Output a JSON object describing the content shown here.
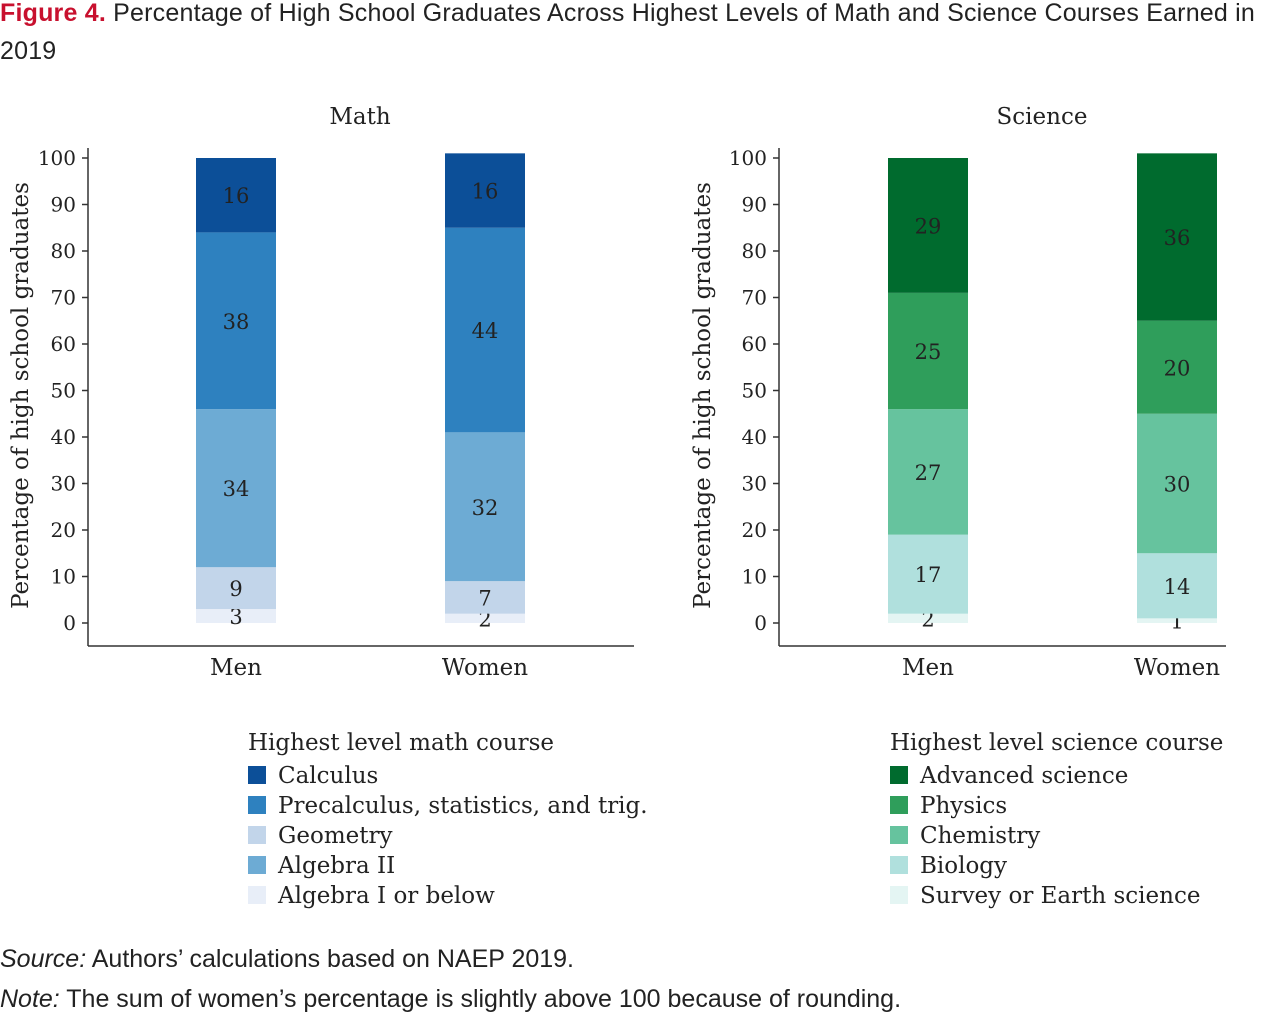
{
  "figure": {
    "label": "Figure 4.",
    "title": "Percentage of High School Graduates Across Highest Levels of Math and Science Courses Earned in 2019"
  },
  "source": {
    "label": "Source:",
    "text": "Authors’ calculations based on NAEP 2019."
  },
  "note": {
    "label": "Note:",
    "text": "The sum of women’s percentage is slightly above 100 because of rounding."
  },
  "chart_data": [
    {
      "type": "bar",
      "stacked": true,
      "title": "Math",
      "ylabel": "Percentage of high school graduates",
      "ylim": [
        0,
        100
      ],
      "yticks": [
        "0",
        "10",
        "20",
        "30",
        "40",
        "50",
        "60",
        "70",
        "80",
        "90",
        "100"
      ],
      "categories": [
        "Men",
        "Women"
      ],
      "legend_title": "Highest level math course",
      "legend_items": [
        "Calculus",
        "Precalculus, statistics, and trig.",
        "Geometry",
        "Algebra II",
        "Algebra I or below"
      ],
      "series": [
        {
          "name": "Algebra I or below",
          "color": "#e8eef8",
          "values": [
            3,
            2
          ]
        },
        {
          "name": "Geometry",
          "color": "#c2d5ea",
          "values": [
            9,
            7
          ]
        },
        {
          "name": "Algebra II",
          "color": "#6dabd4",
          "values": [
            34,
            32
          ]
        },
        {
          "name": "Precalculus, statistics, and trig.",
          "color": "#2e81bf",
          "values": [
            38,
            44
          ]
        },
        {
          "name": "Calculus",
          "color": "#0c4f98",
          "values": [
            16,
            16
          ]
        }
      ]
    },
    {
      "type": "bar",
      "stacked": true,
      "title": "Science",
      "ylabel": "Percentage of high school graduates",
      "ylim": [
        0,
        100
      ],
      "yticks": [
        "0",
        "10",
        "20",
        "30",
        "40",
        "50",
        "60",
        "70",
        "80",
        "90",
        "100"
      ],
      "categories": [
        "Men",
        "Women"
      ],
      "legend_title": "Highest level science course",
      "legend_items": [
        "Advanced science",
        "Physics",
        "Chemistry",
        "Biology",
        "Survey or Earth science"
      ],
      "series": [
        {
          "name": "Survey or Earth science",
          "color": "#e4f5f3",
          "values": [
            2,
            1
          ]
        },
        {
          "name": "Biology",
          "color": "#b0e0dd",
          "values": [
            17,
            14
          ]
        },
        {
          "name": "Chemistry",
          "color": "#66c39e",
          "values": [
            27,
            30
          ]
        },
        {
          "name": "Physics",
          "color": "#2f9e5b",
          "values": [
            25,
            20
          ]
        },
        {
          "name": "Advanced science",
          "color": "#006b2e",
          "values": [
            29,
            36
          ]
        }
      ]
    }
  ]
}
